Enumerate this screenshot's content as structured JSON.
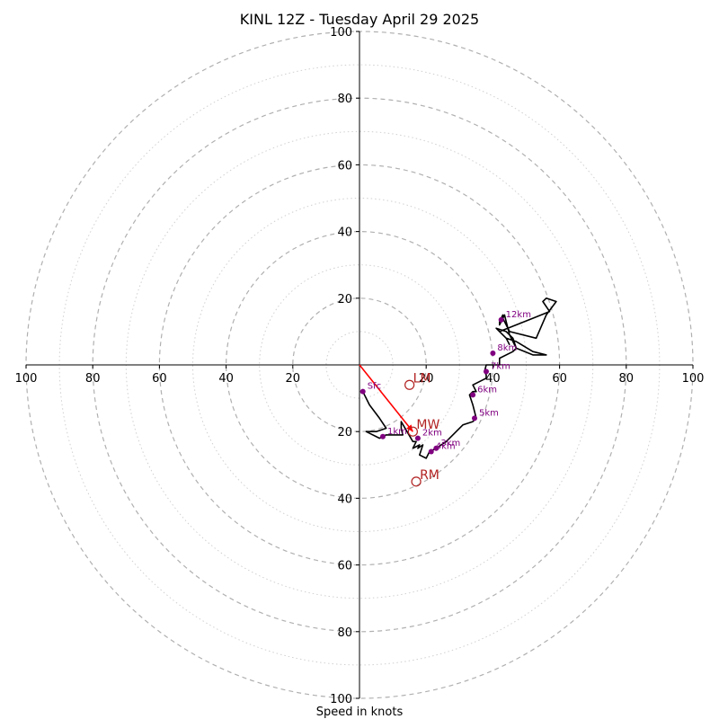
{
  "chart_data": {
    "type": "scatter",
    "title": "KINL 12Z - Tuesday April 29 2025",
    "xlabel": "Speed in knots",
    "ylabel": "",
    "xlim": [
      -100,
      100
    ],
    "ylim": [
      -100,
      100
    ],
    "grid": "concentric rings every 10 kt (dashed at 20 kt multiples, dotted between)",
    "ticks": {
      "left": [
        "100",
        "80",
        "60",
        "40",
        "20"
      ],
      "right": [
        "20",
        "40",
        "60",
        "80",
        "100"
      ],
      "top": [
        "20",
        "40",
        "60",
        "80",
        "100"
      ],
      "bottom": [
        "20",
        "40",
        "60",
        "80",
        "100"
      ]
    },
    "colors": {
      "hodograph": "#000000",
      "height_markers": "#800080",
      "motion": "#b22222",
      "mean_wind_vector": "#ff0000",
      "grid": "#b0b0b0"
    },
    "hodograph": {
      "u": [
        1,
        3,
        6,
        8,
        5,
        2,
        6,
        8,
        9,
        10,
        12,
        13,
        12.5,
        12.5,
        16,
        17,
        16,
        18,
        17.5,
        19,
        18,
        20,
        21,
        23,
        26,
        29,
        31,
        34,
        35,
        34.5,
        34,
        33,
        34,
        35,
        34,
        38,
        38,
        37.5,
        38,
        40,
        42,
        42,
        46,
        47,
        46,
        44,
        41,
        42,
        44,
        47,
        52,
        56,
        52,
        47,
        45,
        44,
        43.5,
        42,
        42,
        43,
        43,
        44,
        45,
        53,
        56,
        59,
        56,
        55,
        57,
        52,
        42,
        44,
        45
      ],
      "v": [
        -8,
        -12,
        -16,
        -19,
        -20,
        -20,
        -22,
        -21,
        -21,
        -21,
        -21,
        -21,
        -19,
        -17,
        -23,
        -23,
        -25,
        -24,
        -25,
        -24,
        -27,
        -28,
        -26,
        -25,
        -23,
        -20,
        -18,
        -17,
        -16,
        -14,
        -12,
        -9,
        -8,
        -8,
        -6,
        -4,
        -3,
        -2,
        0,
        0,
        0,
        2,
        4,
        5,
        8,
        10,
        11,
        10,
        8,
        7,
        4,
        3,
        3,
        5,
        9,
        13,
        15,
        12,
        13,
        15,
        14,
        12,
        10,
        8,
        15,
        19,
        20,
        19,
        16,
        14,
        10,
        8,
        6
      ]
    },
    "height_points": [
      {
        "label": "Sfc",
        "u": 1,
        "v": -8
      },
      {
        "label": "1km",
        "u": 7,
        "v": -21.5
      },
      {
        "label": "2km",
        "u": 17.5,
        "v": -22
      },
      {
        "label": "4km",
        "u": 21.5,
        "v": -26
      },
      {
        "label": "3km",
        "u": 23,
        "v": -25
      },
      {
        "label": "5km",
        "u": 34.5,
        "v": -16
      },
      {
        "label": "6km",
        "u": 34,
        "v": -9
      },
      {
        "label": "7km",
        "u": 38,
        "v": -2
      },
      {
        "label": "8km",
        "u": 40,
        "v": 3.5
      },
      {
        "label": "12km",
        "u": 42.5,
        "v": 13.5
      }
    ],
    "motions": [
      {
        "label": "LM",
        "u": 15,
        "v": -6
      },
      {
        "label": "MW",
        "u": 16,
        "v": -20
      },
      {
        "label": "RM",
        "u": 17,
        "v": -35
      }
    ],
    "mean_wind_vector": {
      "from": [
        0,
        0
      ],
      "to": [
        16,
        -20
      ]
    }
  }
}
